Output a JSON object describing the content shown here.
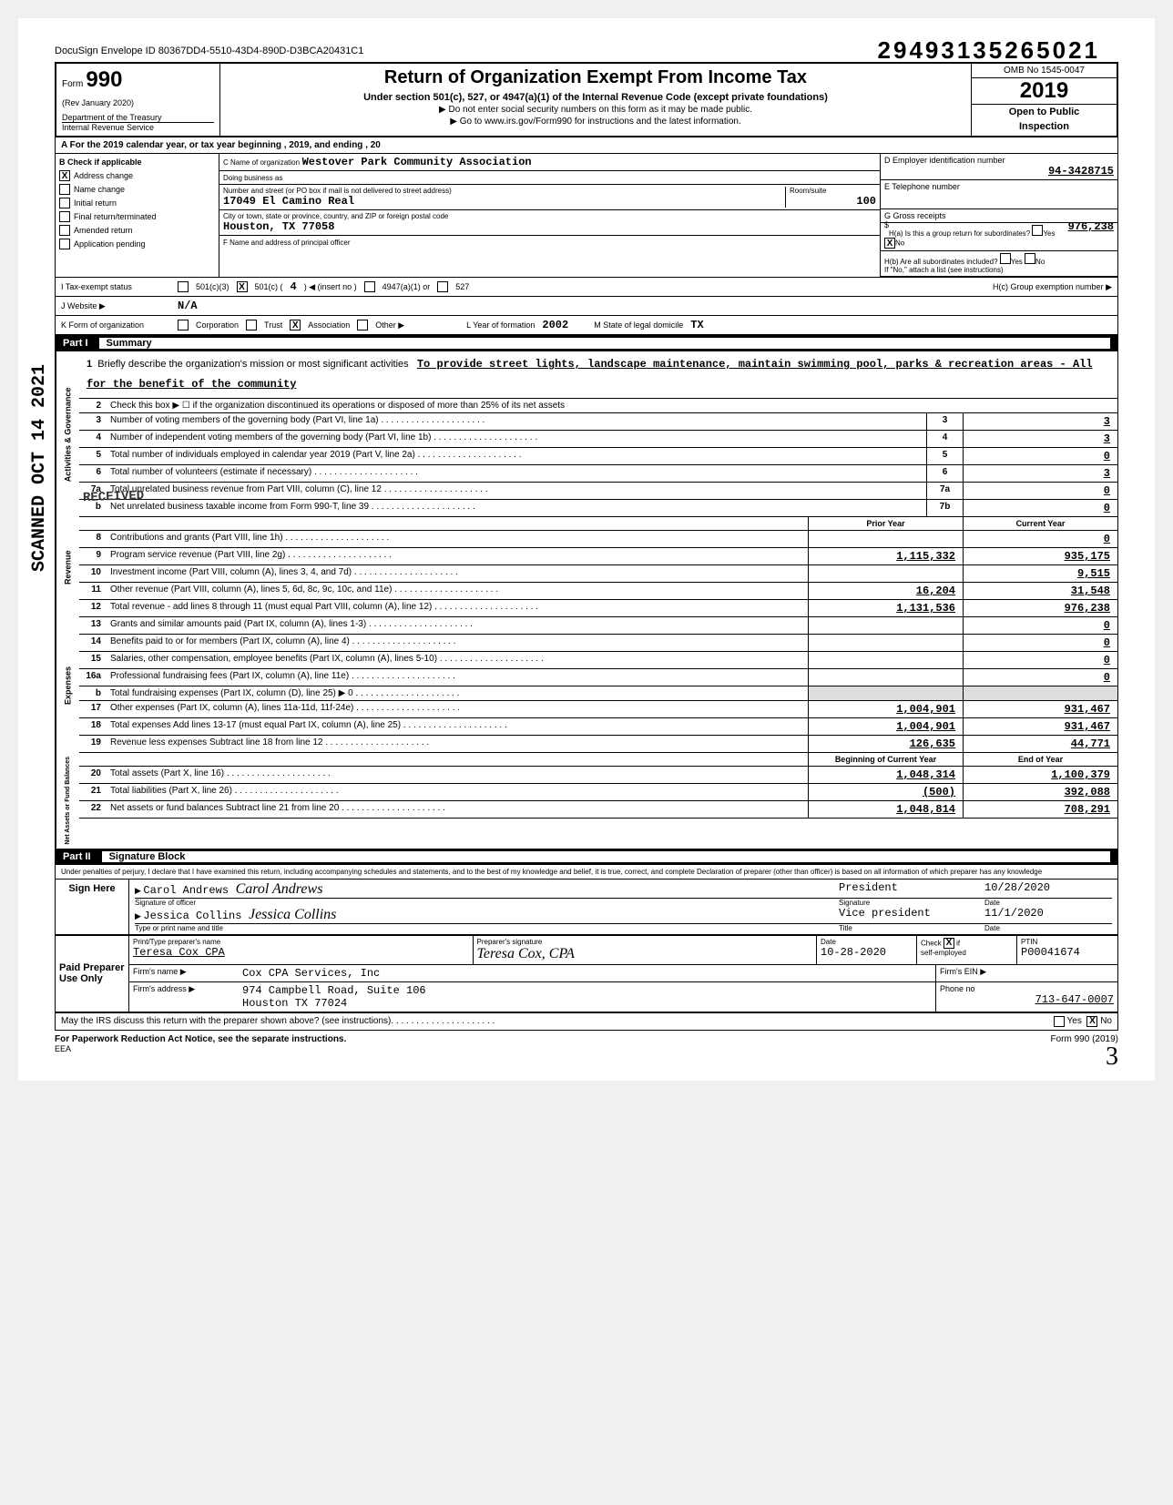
{
  "docusign": "DocuSign Envelope ID 80367DD4-5510-43D4-890D-D3BCA20431C1",
  "top_number": "29493135265021",
  "header": {
    "form_label": "Form",
    "form_number": "990",
    "rev": "(Rev January 2020)",
    "dept": "Department of the Treasury",
    "irs": "Internal Revenue Service",
    "title": "Return of Organization Exempt From Income Tax",
    "subtitle": "Under section 501(c), 527, or 4947(a)(1) of the Internal Revenue Code (except private foundations)",
    "notice1": "▶ Do not enter social security numbers on this form as it may be made public.",
    "notice2": "▶ Go to www.irs.gov/Form990 for instructions and the latest information.",
    "omb": "OMB No 1545-0047",
    "year": "2019",
    "open": "Open to Public",
    "inspection": "Inspection"
  },
  "row_a": "A   For the 2019 calendar year, or tax year beginning                                                              , 2019, and ending                                                  , 20",
  "section_b": {
    "label": "B   Check if applicable",
    "items": [
      {
        "label": "Address change",
        "checked": true
      },
      {
        "label": "Name change",
        "checked": false
      },
      {
        "label": "Initial return",
        "checked": false
      },
      {
        "label": "Final return/terminated",
        "checked": false
      },
      {
        "label": "Amended return",
        "checked": false
      },
      {
        "label": "Application pending",
        "checked": false
      }
    ]
  },
  "section_c": {
    "name_label": "C  Name of organization",
    "name": "Westover Park Community Association",
    "dba_label": "Doing business as",
    "street_label": "Number and street (or PO box if mail is not delivered to street address)",
    "street": "17049 El Camino Real",
    "room_label": "Room/suite",
    "room": "100",
    "city_label": "City or town, state or province, country, and ZIP or foreign postal code",
    "city": "Houston, TX 77058",
    "f_label": "F  Name and address of principal officer"
  },
  "section_d": {
    "ein_label": "D  Employer identification number",
    "ein": "94-3428715",
    "tel_label": "E  Telephone number",
    "gross_label": "G  Gross receipts",
    "gross": "976,238",
    "ha_label": "H(a) Is this a group return for subordinates?",
    "ha_yes": "Yes",
    "ha_no": "No",
    "ha_checked": "No",
    "hb_label": "H(b) Are all subordinates included?",
    "hb_yes": "Yes",
    "hb_no": "No",
    "hb_note": "If \"No,\" attach a list (see instructions)",
    "hc_label": "H(c)   Group exemption number  ▶"
  },
  "tax_status": {
    "i_label": "I     Tax-exempt status",
    "opt_501c3": "501(c)(3)",
    "opt_501c": "501(c) (",
    "opt_501c_num": "4",
    "opt_501c_close": ")   ◀ (insert no )",
    "opt_4947": "4947(a)(1) or",
    "opt_527": "527",
    "j_label": "J     Website  ▶",
    "j_val": "N/A",
    "k_label": "K    Form of organization",
    "k_corp": "Corporation",
    "k_trust": "Trust",
    "k_assoc": "Association",
    "k_other": "Other ▶",
    "l_label": "L  Year of formation",
    "l_val": "2002",
    "m_label": "M  State of legal domicile",
    "m_val": "TX"
  },
  "part1": {
    "label": "Part I",
    "title": "Summary",
    "line1_label": "Briefly describe the organization's mission or most significant activities",
    "mission": "To provide street lights, landscape maintenance, maintain swimming pool, parks & recreation areas - All for the benefit of the community",
    "line2": "Check this box ▶ ☐ if the organization discontinued its operations or disposed of more than 25% of its net assets"
  },
  "gov_lines": [
    {
      "num": "3",
      "desc": "Number of voting members of the governing body (Part VI, line 1a)",
      "box": "3",
      "val": "3"
    },
    {
      "num": "4",
      "desc": "Number of independent voting members of the governing body (Part VI, line 1b)",
      "box": "4",
      "val": "3"
    },
    {
      "num": "5",
      "desc": "Total number of individuals employed in calendar year 2019 (Part V, line 2a)",
      "box": "5",
      "val": "0"
    },
    {
      "num": "6",
      "desc": "Total number of volunteers (estimate if necessary)",
      "box": "6",
      "val": "3"
    },
    {
      "num": "7a",
      "desc": "Total unrelated business revenue from Part VIII, column (C), line 12",
      "box": "7a",
      "val": "0"
    },
    {
      "num": "b",
      "desc": "Net unrelated business taxable income from Form 990-T, line 39",
      "box": "7b",
      "val": "0"
    }
  ],
  "rev_header": {
    "prior": "Prior Year",
    "curr": "Current Year"
  },
  "rev_lines": [
    {
      "num": "8",
      "desc": "Contributions and grants (Part VIII, line 1h)",
      "prior": "",
      "curr": "0"
    },
    {
      "num": "9",
      "desc": "Program service revenue (Part VIII, line 2g)",
      "prior": "1,115,332",
      "curr": "935,175"
    },
    {
      "num": "10",
      "desc": "Investment income (Part VIII, column (A), lines 3, 4, and 7d)",
      "prior": "",
      "curr": "9,515"
    },
    {
      "num": "11",
      "desc": "Other revenue (Part VIII, column (A), lines 5, 6d, 8c, 9c, 10c, and 11e)",
      "prior": "16,204",
      "curr": "31,548"
    },
    {
      "num": "12",
      "desc": "Total revenue - add lines 8 through 11 (must equal Part VIII, column (A), line 12)",
      "prior": "1,131,536",
      "curr": "976,238"
    }
  ],
  "exp_lines": [
    {
      "num": "13",
      "desc": "Grants and similar amounts paid (Part IX, column (A), lines 1-3)",
      "prior": "",
      "curr": "0"
    },
    {
      "num": "14",
      "desc": "Benefits paid to or for members (Part IX, column (A), line 4)",
      "prior": "",
      "curr": "0"
    },
    {
      "num": "15",
      "desc": "Salaries, other compensation, employee benefits (Part IX, column (A), lines 5-10)",
      "prior": "",
      "curr": "0"
    },
    {
      "num": "16a",
      "desc": "Professional fundraising fees (Part IX, column (A), line 11e)",
      "prior": "",
      "curr": "0"
    },
    {
      "num": "b",
      "desc": "Total fundraising expenses (Part IX, column (D), line 25)   ▶                    0",
      "prior": "",
      "curr": "",
      "shaded": true
    },
    {
      "num": "17",
      "desc": "Other expenses (Part IX, column (A), lines 11a-11d, 11f-24e)",
      "prior": "1,004,901",
      "curr": "931,467"
    },
    {
      "num": "18",
      "desc": "Total expenses  Add lines 13-17 (must equal Part IX, column (A), line 25)",
      "prior": "1,004,901",
      "curr": "931,467"
    },
    {
      "num": "19",
      "desc": "Revenue less expenses  Subtract line 18 from line 12",
      "prior": "126,635",
      "curr": "44,771"
    }
  ],
  "net_header": {
    "prior": "Beginning of Current Year",
    "curr": "End of Year"
  },
  "net_lines": [
    {
      "num": "20",
      "desc": "Total assets (Part X, line 16)",
      "prior": "1,048,314",
      "curr": "1,100,379"
    },
    {
      "num": "21",
      "desc": "Total liabilities (Part X, line 26)",
      "prior": "(500)",
      "curr": "392,088"
    },
    {
      "num": "22",
      "desc": "Net assets or fund balances  Subtract line 21 from line 20",
      "prior": "1,048,814",
      "curr": "708,291"
    }
  ],
  "part2": {
    "label": "Part II",
    "title": "Signature Block",
    "perjury": "Under penalties of perjury, I declare that I have examined this return, including accompanying schedules and statements, and to the best of my knowledge and belief, it is true, correct, and complete  Declaration of preparer (other than officer) is based on all information of which preparer has any knowledge"
  },
  "sign": {
    "here": "Sign Here",
    "officer_name": "Carol Andrews",
    "officer_sig_label": "Signature of officer",
    "officer_title": "President",
    "officer_date": "10/28/2020",
    "officer2_name": "Jessica Collins",
    "officer2_label": "Type or print name and title",
    "officer2_title": "Vice president",
    "officer2_date": "11/1/2020",
    "sig_word": "Signature",
    "title_word": "Title",
    "date_word": "Date"
  },
  "preparer": {
    "label": "Paid Preparer Use Only",
    "name_label": "Print/Type preparer's name",
    "name": "Teresa Cox CPA",
    "sig_label": "Preparer's signature",
    "sig": "Teresa Cox, CPA",
    "date_label": "Date",
    "date": "10-28-2020",
    "check_label": "Check",
    "self_emp": "self-employed",
    "ptin_label": "PTIN",
    "ptin": "P00041674",
    "firm_label": "Firm's name   ▶",
    "firm": "Cox CPA Services, Inc",
    "ein_label": "Firm's EIN  ▶",
    "addr_label": "Firm's address ▶",
    "addr1": "974 Campbell Road, Suite 106",
    "addr2": "Houston TX 77024",
    "phone_label": "Phone no",
    "phone": "713-647-0007"
  },
  "discuss": {
    "q": "May the IRS discuss this return with the preparer shown above? (see instructions)",
    "yes": "Yes",
    "no": "No"
  },
  "footer": {
    "left": "For Paperwork Reduction Act Notice, see the separate instructions.",
    "right": "Form 990 (2019)",
    "eea": "EEA"
  },
  "stamps": {
    "received": "RECEIVED",
    "scanned": "SCANNED OCT 14 2021"
  },
  "page_num": "3",
  "colors": {
    "bg": "#ffffff",
    "text": "#000000",
    "shaded": "#dddddd"
  }
}
